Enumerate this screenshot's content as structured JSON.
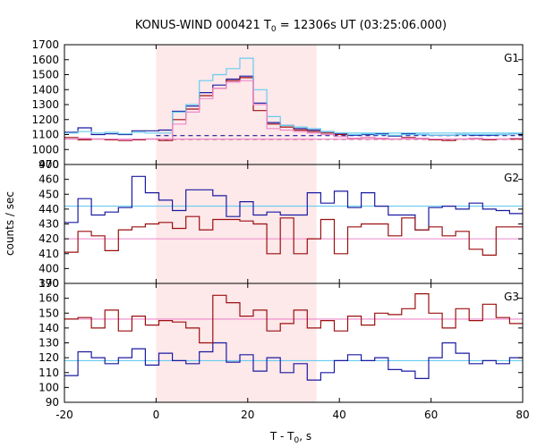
{
  "title_main": "KONUS-WIND 000421 T",
  "title_sub": "0",
  "title_rest": " = 12306s UT (03:25:06.000)",
  "ylabel": "counts / sec",
  "xlabel_main": "T - T",
  "xlabel_sub": "0",
  "xlabel_rest": ", s",
  "colors": {
    "blue": "#1a1aa0",
    "red": "#9b0f0f",
    "cyan": "#66ccee",
    "pink": "#ee88cc",
    "shade": "#fde8ea"
  },
  "chart_data": {
    "type": "line",
    "x_range": [
      -20,
      80
    ],
    "x_ticks": [
      -20,
      0,
      20,
      40,
      60,
      80
    ],
    "highlight_interval": [
      0,
      35
    ],
    "bin_width": 2.944,
    "x_start": -20,
    "panels": [
      {
        "label": "G1",
        "ylim": [
          900,
          1700
        ],
        "yticks": [
          900,
          1000,
          1100,
          1200,
          1300,
          1400,
          1500,
          1600,
          1700
        ],
        "series": [
          {
            "color": "blue",
            "values": [
              1115,
              1145,
              1100,
              1105,
              1100,
              1125,
              1125,
              1130,
              1255,
              1290,
              1380,
              1430,
              1470,
              1490,
              1310,
              1180,
              1160,
              1140,
              1130,
              1120,
              1105,
              1095,
              1100,
              1105,
              1090,
              1105,
              1100,
              1095,
              1095,
              1100,
              1095,
              1095,
              1100,
              1105,
              1100
            ]
          },
          {
            "color": "red",
            "values": [
              1080,
              1065,
              1070,
              1065,
              1060,
              1065,
              1070,
              1060,
              1200,
              1270,
              1360,
              1410,
              1460,
              1480,
              1260,
              1170,
              1150,
              1130,
              1120,
              1110,
              1100,
              1075,
              1080,
              1075,
              1070,
              1080,
              1075,
              1065,
              1060,
              1070,
              1075,
              1065,
              1070,
              1070,
              1075
            ]
          },
          {
            "color": "cyan",
            "values": [
              1110,
              1120,
              1110,
              1115,
              1105,
              1115,
              1110,
              1110,
              1250,
              1300,
              1460,
              1500,
              1540,
              1610,
              1400,
              1220,
              1160,
              1150,
              1140,
              1120,
              1110,
              1100,
              1105,
              1100,
              1095,
              1100,
              1100,
              1095,
              1095,
              1100,
              1100,
              1100,
              1100,
              1105,
              1105
            ]
          },
          {
            "color": "pink",
            "values": [
              1070,
              1075,
              1070,
              1070,
              1065,
              1070,
              1070,
              1070,
              1170,
              1250,
              1340,
              1410,
              1450,
              1460,
              1300,
              1140,
              1130,
              1120,
              1110,
              1100,
              1085,
              1075,
              1080,
              1075,
              1070,
              1075,
              1075,
              1070,
              1070,
              1070,
              1075,
              1070,
              1070,
              1075,
              1075
            ]
          }
        ],
        "baselines": [
          {
            "color": "blue",
            "value": 1093,
            "dashed": true,
            "from": 0
          },
          {
            "color": "red",
            "value": 1068,
            "dashed": true,
            "from": 0
          },
          {
            "color": "cyan",
            "value": 1110,
            "dashed": false,
            "from": 35
          },
          {
            "color": "pink",
            "value": 1070,
            "dashed": false,
            "from": -20
          }
        ]
      },
      {
        "label": "G2",
        "ylim": [
          390,
          470
        ],
        "yticks": [
          390,
          400,
          410,
          420,
          430,
          440,
          450,
          460,
          470
        ],
        "series": [
          {
            "color": "blue",
            "values": [
              431,
              447,
              436,
              438,
              441,
              462,
              451,
              446,
              439,
              453,
              453,
              449,
              435,
              445,
              436,
              438,
              436,
              436,
              451,
              444,
              452,
              441,
              451,
              442,
              436,
              436,
              426,
              441,
              442,
              440,
              444,
              440,
              439,
              437,
              433
            ]
          },
          {
            "color": "red",
            "values": [
              411,
              425,
              422,
              412,
              426,
              428,
              430,
              431,
              427,
              435,
              426,
              433,
              433,
              432,
              430,
              410,
              434,
              410,
              420,
              433,
              410,
              428,
              430,
              430,
              422,
              434,
              426,
              428,
              422,
              425,
              413,
              409,
              428,
              428,
              413
            ]
          }
        ],
        "baselines": [
          {
            "color": "cyan",
            "value": 442,
            "dashed": false,
            "from": -20
          },
          {
            "color": "pink",
            "value": 420,
            "dashed": false,
            "from": -20
          }
        ]
      },
      {
        "label": "G3",
        "ylim": [
          90,
          170
        ],
        "yticks": [
          90,
          100,
          110,
          120,
          130,
          140,
          150,
          160,
          170
        ],
        "series": [
          {
            "color": "blue",
            "values": [
              108,
              124,
              120,
              116,
              120,
              126,
              115,
              123,
              118,
              116,
              124,
              130,
              117,
              122,
              111,
              120,
              110,
              116,
              105,
              110,
              118,
              122,
              118,
              120,
              112,
              111,
              106,
              120,
              130,
              123,
              116,
              118,
              116,
              120,
              117
            ]
          },
          {
            "color": "red",
            "values": [
              146,
              147,
              140,
              152,
              138,
              148,
              142,
              145,
              144,
              140,
              130,
              162,
              157,
              148,
              152,
              138,
              143,
              152,
              140,
              145,
              138,
              148,
              142,
              150,
              149,
              153,
              163,
              150,
              140,
              153,
              145,
              156,
              147,
              143,
              149
            ]
          }
        ],
        "baselines": [
          {
            "color": "cyan",
            "value": 118,
            "dashed": false,
            "from": -20
          },
          {
            "color": "pink",
            "value": 146,
            "dashed": false,
            "from": -20
          }
        ]
      }
    ]
  }
}
